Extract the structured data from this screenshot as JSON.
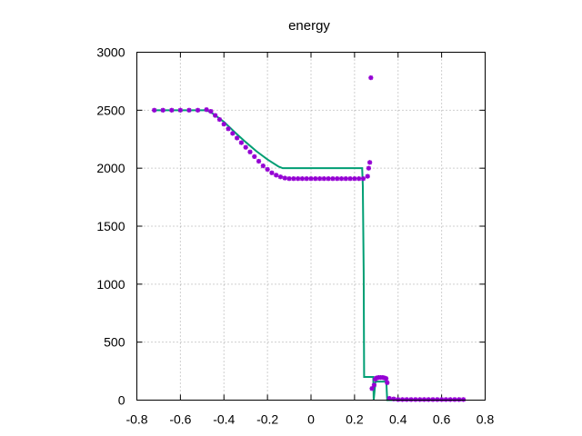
{
  "chart_data": {
    "type": "scatter",
    "title": "energy",
    "xlabel": "",
    "ylabel": "",
    "xlim": [
      -0.8,
      0.8
    ],
    "ylim": [
      0,
      3000
    ],
    "x_ticks": [
      "-0.8",
      "-0.6",
      "-0.4",
      "-0.2",
      "0",
      "0.2",
      "0.4",
      "0.6",
      "0.8"
    ],
    "y_ticks": [
      "0",
      "500",
      "1000",
      "1500",
      "2000",
      "2500",
      "3000"
    ],
    "grid": true,
    "legend": "none",
    "series": [
      {
        "style": "line",
        "color": "#009e73",
        "x": [
          -0.72,
          -0.48,
          -0.45,
          -0.4,
          -0.35,
          -0.3,
          -0.25,
          -0.2,
          -0.15,
          -0.13,
          0.235,
          0.238,
          0.242,
          0.244,
          0.286,
          0.288,
          0.296,
          0.346,
          0.35,
          0.7
        ],
        "y": [
          2500,
          2500,
          2470,
          2400,
          2310,
          2225,
          2145,
          2075,
          2015,
          2000,
          2000,
          1850,
          1100,
          200,
          200,
          0,
          160,
          160,
          0,
          0
        ]
      },
      {
        "style": "points",
        "color": "#9400d3",
        "x": [
          -0.72,
          -0.68,
          -0.64,
          -0.6,
          -0.56,
          -0.52,
          -0.48,
          -0.46,
          -0.44,
          -0.42,
          -0.4,
          -0.38,
          -0.36,
          -0.34,
          -0.32,
          -0.3,
          -0.28,
          -0.26,
          -0.24,
          -0.22,
          -0.2,
          -0.18,
          -0.16,
          -0.14,
          -0.12,
          -0.1,
          -0.08,
          -0.06,
          -0.04,
          -0.02,
          0.0,
          0.02,
          0.04,
          0.06,
          0.08,
          0.1,
          0.12,
          0.14,
          0.16,
          0.18,
          0.2,
          0.22,
          0.24,
          0.26,
          0.265,
          0.27,
          0.275,
          0.28,
          0.29,
          0.295,
          0.3,
          0.31,
          0.32,
          0.33,
          0.34,
          0.345,
          0.35,
          0.36,
          0.38,
          0.4,
          0.42,
          0.44,
          0.46,
          0.48,
          0.5,
          0.52,
          0.54,
          0.56,
          0.58,
          0.6,
          0.62,
          0.64,
          0.66,
          0.68,
          0.7
        ],
        "y": [
          2500,
          2500,
          2500,
          2500,
          2500,
          2500,
          2505,
          2490,
          2455,
          2420,
          2380,
          2340,
          2300,
          2260,
          2220,
          2180,
          2140,
          2100,
          2060,
          2020,
          1990,
          1960,
          1940,
          1925,
          1915,
          1910,
          1910,
          1910,
          1910,
          1910,
          1910,
          1910,
          1910,
          1910,
          1910,
          1910,
          1910,
          1910,
          1910,
          1910,
          1910,
          1910,
          1910,
          1930,
          2000,
          2050,
          2780,
          100,
          130,
          180,
          190,
          195,
          195,
          195,
          190,
          185,
          150,
          15,
          10,
          5,
          5,
          5,
          5,
          5,
          5,
          5,
          5,
          5,
          5,
          5,
          5,
          5,
          5,
          5,
          5
        ]
      }
    ]
  }
}
